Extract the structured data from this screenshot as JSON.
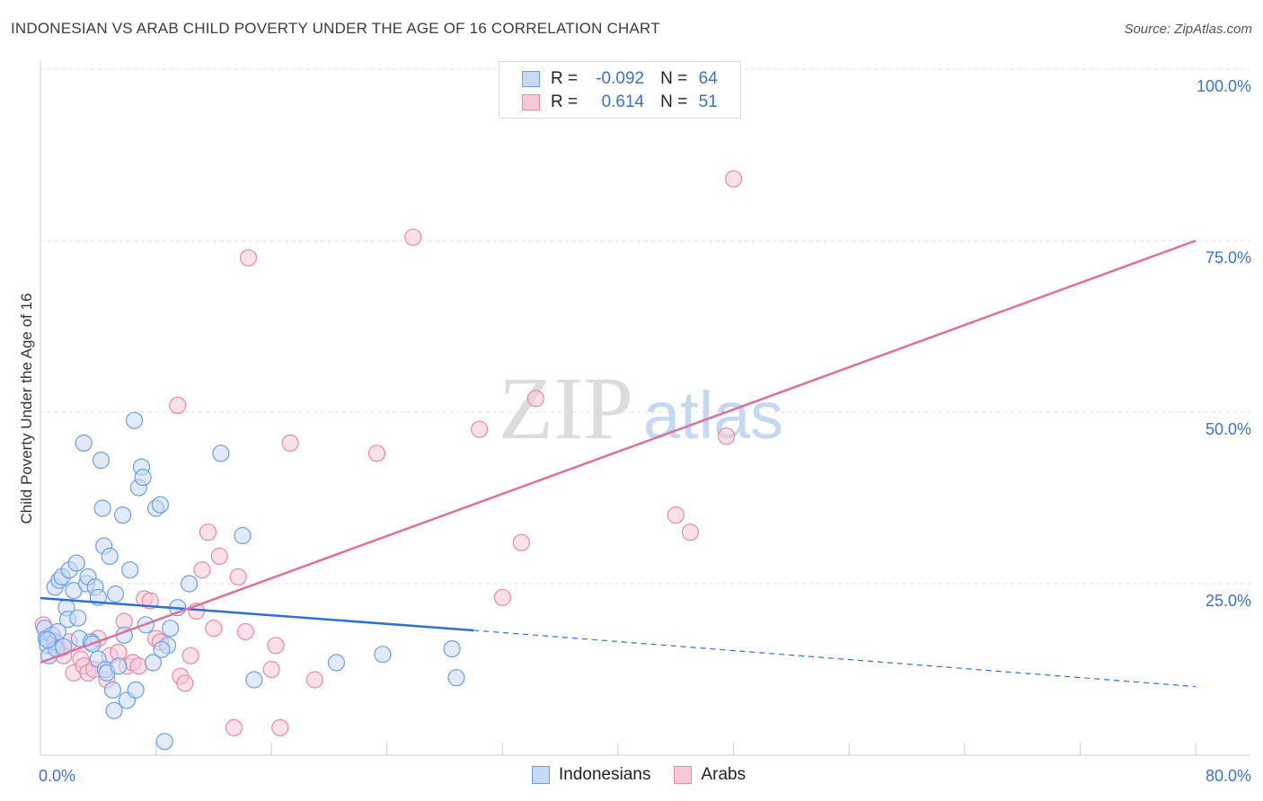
{
  "header": {
    "title": "INDONESIAN VS ARAB CHILD POVERTY UNDER THE AGE OF 16 CORRELATION CHART",
    "source": "Source: ZipAtlas.com"
  },
  "watermark": {
    "zip": "ZIP",
    "atlas": "atlas"
  },
  "legend": {
    "r_label": "R =",
    "n_label": "N =",
    "rows": [
      {
        "r": "-0.092",
        "n": "64"
      },
      {
        "r": "0.614",
        "n": "51"
      }
    ]
  },
  "chart_data": {
    "type": "scatter",
    "title": "INDONESIAN VS ARAB CHILD POVERTY UNDER THE AGE OF 16 CORRELATION CHART",
    "xlabel": "",
    "ylabel": "Child Poverty Under the Age of 16",
    "xlim": [
      0,
      80
    ],
    "ylim": [
      0,
      100
    ],
    "x_tick_labels": [
      {
        "value": 0,
        "label": "0.0%"
      },
      {
        "value": 80,
        "label": "80.0%"
      }
    ],
    "y_tick_labels": [
      {
        "value": 25,
        "label": "25.0%"
      },
      {
        "value": 50,
        "label": "50.0%"
      },
      {
        "value": 75,
        "label": "75.0%"
      },
      {
        "value": 100,
        "label": "100.0%"
      }
    ],
    "x_minor_ticks": [
      0,
      8,
      16,
      24,
      32,
      40,
      48,
      56,
      64,
      72,
      80
    ],
    "grid": true,
    "series": [
      {
        "name": "Indonesians",
        "color": "#6c9fe0",
        "fill": "#c6d9f5",
        "r": -0.092,
        "n": 64,
        "trend": {
          "x0": 0,
          "y0": 22.9,
          "x1": 30,
          "y1": 18.2,
          "dash_to_x": 80,
          "dash_to_y": 10.0
        },
        "points": [
          [
            0.3,
            18.5
          ],
          [
            0.4,
            17.0
          ],
          [
            0.5,
            16.0
          ],
          [
            0.6,
            14.5
          ],
          [
            0.8,
            17.5
          ],
          [
            1.0,
            16.5
          ],
          [
            1.1,
            15.5
          ],
          [
            1.2,
            18.0
          ],
          [
            1.0,
            24.5
          ],
          [
            1.3,
            25.5
          ],
          [
            1.5,
            26.0
          ],
          [
            1.8,
            21.5
          ],
          [
            1.9,
            19.8
          ],
          [
            2.0,
            27.0
          ],
          [
            2.3,
            24.0
          ],
          [
            2.5,
            28.0
          ],
          [
            2.6,
            20.0
          ],
          [
            2.7,
            17.0
          ],
          [
            3.0,
            45.5
          ],
          [
            3.2,
            25.0
          ],
          [
            3.3,
            26.0
          ],
          [
            3.5,
            16.5
          ],
          [
            3.8,
            24.5
          ],
          [
            4.0,
            23.0
          ],
          [
            4.0,
            14.0
          ],
          [
            4.2,
            43.0
          ],
          [
            4.3,
            36.0
          ],
          [
            4.4,
            30.5
          ],
          [
            4.5,
            12.5
          ],
          [
            4.6,
            12.0
          ],
          [
            4.8,
            29.0
          ],
          [
            5.0,
            9.5
          ],
          [
            5.1,
            6.5
          ],
          [
            5.2,
            23.5
          ],
          [
            5.4,
            13.0
          ],
          [
            5.7,
            35.0
          ],
          [
            5.8,
            17.5
          ],
          [
            6.0,
            8.0
          ],
          [
            6.2,
            27.0
          ],
          [
            6.5,
            48.8
          ],
          [
            6.6,
            9.5
          ],
          [
            6.8,
            39.0
          ],
          [
            7.0,
            42.0
          ],
          [
            7.1,
            40.5
          ],
          [
            7.3,
            19.0
          ],
          [
            7.8,
            13.5
          ],
          [
            8.0,
            36.0
          ],
          [
            8.3,
            36.5
          ],
          [
            8.6,
            2.0
          ],
          [
            8.8,
            16.0
          ],
          [
            9.0,
            18.5
          ],
          [
            9.5,
            21.5
          ],
          [
            10.3,
            25.0
          ],
          [
            12.5,
            44.0
          ],
          [
            14.0,
            32.0
          ],
          [
            14.8,
            11.0
          ],
          [
            20.5,
            13.5
          ],
          [
            23.7,
            14.7
          ],
          [
            28.5,
            15.5
          ],
          [
            28.8,
            11.3
          ],
          [
            0.5,
            16.8
          ],
          [
            1.6,
            15.8
          ],
          [
            3.6,
            16.2
          ],
          [
            8.4,
            15.4
          ]
        ]
      },
      {
        "name": "Arabs",
        "color": "#e88aa8",
        "fill": "#f6c9d7",
        "r": 0.614,
        "n": 51,
        "trend": {
          "x0": 0,
          "y0": 13.5,
          "x1": 80,
          "y1": 75.0
        },
        "points": [
          [
            0.2,
            19.0
          ],
          [
            0.6,
            17.0
          ],
          [
            0.9,
            16.0
          ],
          [
            1.3,
            15.5
          ],
          [
            1.6,
            14.5
          ],
          [
            2.0,
            16.5
          ],
          [
            2.3,
            12.0
          ],
          [
            2.8,
            14.0
          ],
          [
            3.0,
            13.0
          ],
          [
            3.3,
            12.0
          ],
          [
            3.7,
            12.5
          ],
          [
            4.0,
            17.0
          ],
          [
            4.6,
            11.0
          ],
          [
            4.8,
            14.5
          ],
          [
            5.4,
            15.0
          ],
          [
            5.8,
            19.5
          ],
          [
            6.0,
            13.0
          ],
          [
            6.4,
            13.5
          ],
          [
            6.8,
            13.0
          ],
          [
            7.2,
            22.8
          ],
          [
            7.6,
            22.5
          ],
          [
            8.0,
            17.0
          ],
          [
            8.3,
            16.5
          ],
          [
            9.5,
            51.0
          ],
          [
            9.7,
            11.5
          ],
          [
            10.0,
            10.5
          ],
          [
            10.4,
            14.5
          ],
          [
            10.8,
            21.0
          ],
          [
            11.2,
            27.0
          ],
          [
            11.6,
            32.5
          ],
          [
            12.0,
            18.5
          ],
          [
            12.4,
            29.0
          ],
          [
            13.4,
            4.0
          ],
          [
            13.7,
            26.0
          ],
          [
            14.2,
            18.0
          ],
          [
            14.4,
            72.5
          ],
          [
            16.0,
            12.5
          ],
          [
            16.3,
            16.0
          ],
          [
            16.6,
            4.0
          ],
          [
            17.3,
            45.5
          ],
          [
            19.0,
            11.0
          ],
          [
            23.3,
            44.0
          ],
          [
            25.8,
            75.5
          ],
          [
            30.4,
            47.5
          ],
          [
            32.0,
            23.0
          ],
          [
            33.3,
            31.0
          ],
          [
            34.3,
            52.0
          ],
          [
            44.0,
            35.0
          ],
          [
            45.0,
            32.5
          ],
          [
            47.5,
            46.5
          ],
          [
            48.0,
            84.0
          ]
        ]
      }
    ]
  }
}
